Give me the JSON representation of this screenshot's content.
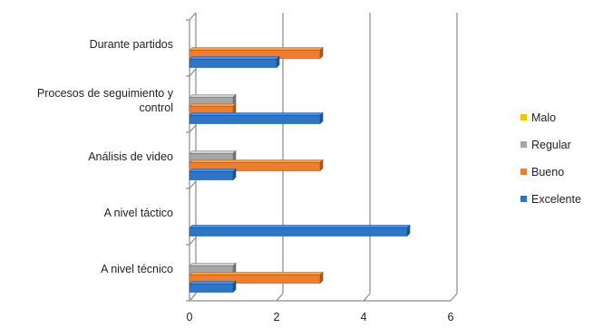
{
  "chart_data": {
    "type": "bar",
    "orientation": "horizontal",
    "style": "3d",
    "categories": [
      [
        "Durante partidos"
      ],
      [
        "Procesos de seguimiento y",
        "control"
      ],
      [
        "Análisis de video"
      ],
      [
        "A nivel táctico"
      ],
      [
        "A nivel técnico"
      ]
    ],
    "series": [
      {
        "name": "Malo",
        "color": "#f5c400",
        "values": [
          0,
          0,
          0,
          0,
          0
        ]
      },
      {
        "name": "Regular",
        "color": "#a6a6a6",
        "values": [
          0,
          1,
          1,
          0,
          1
        ]
      },
      {
        "name": "Bueno",
        "color": "#ed7d31",
        "values": [
          3,
          1,
          3,
          0,
          3
        ]
      },
      {
        "name": "Excelente",
        "color": "#2e75c6",
        "values": [
          2,
          3,
          1,
          5,
          1
        ]
      }
    ],
    "xlim": [
      0,
      6
    ],
    "xticks": [
      "0",
      "2",
      "4",
      "6"
    ],
    "grid": true,
    "legend_position": "right",
    "title": "",
    "xlabel": "",
    "ylabel": ""
  }
}
